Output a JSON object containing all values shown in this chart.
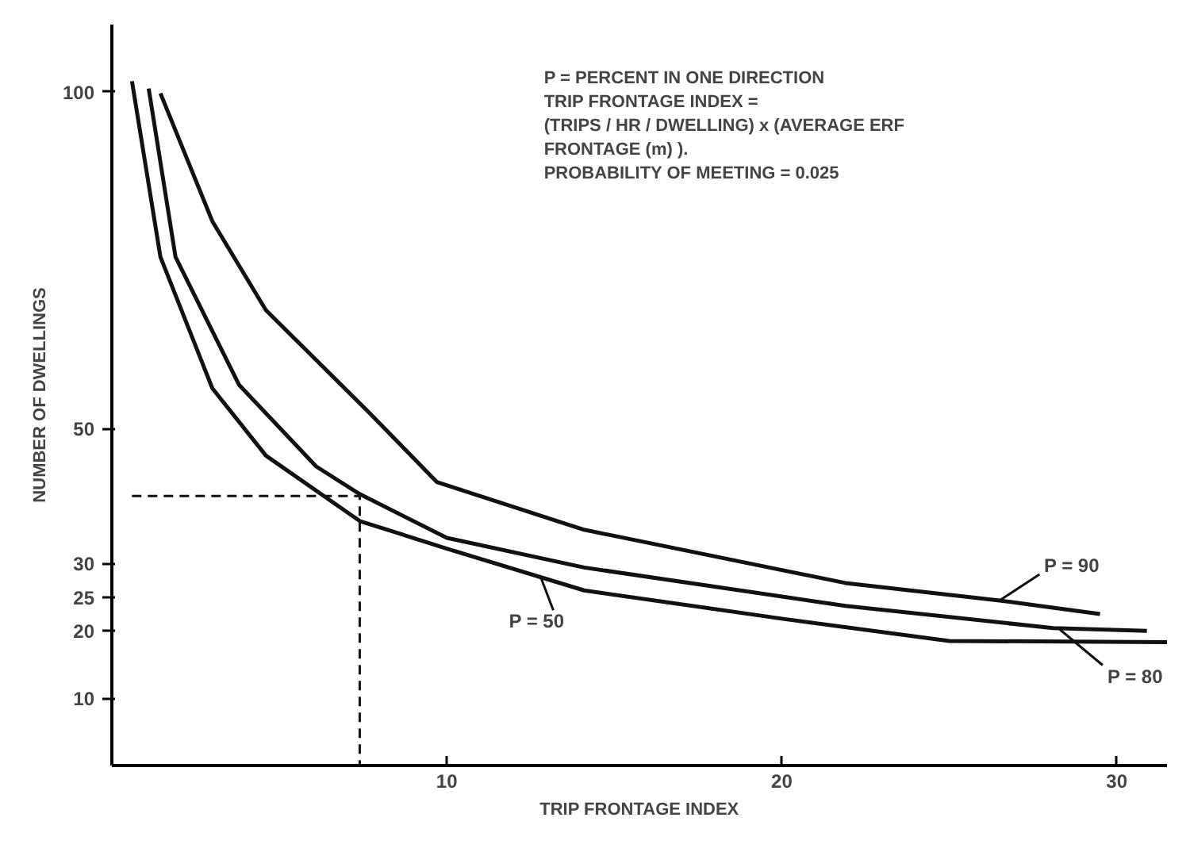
{
  "chart_data": {
    "type": "line",
    "xlabel": "TRIP FRONTAGE INDEX",
    "ylabel": "NUMBER OF DWELLINGS",
    "xlim": [
      0,
      31.5
    ],
    "ylim": [
      0,
      110
    ],
    "xticks": [
      10,
      20,
      30
    ],
    "yticks": [
      10,
      20,
      25,
      30,
      50,
      100
    ],
    "grid": false,
    "marker": "none",
    "line_style": "solid",
    "series": [
      {
        "color": "#111111",
        "x": [
          1.45,
          3.0,
          4.6,
          7.7,
          9.7,
          14.1,
          21.9,
          26.5,
          29.5
        ],
        "values": [
          99.8,
          80.8,
          67.6,
          52.3,
          42.1,
          35,
          27.1,
          24.5,
          22.5
        ]
      },
      {
        "color": "#111111",
        "x": [
          1.1,
          1.9,
          3.8,
          6.1,
          7.4,
          10,
          14.1,
          21.9,
          28.1,
          30.9
        ],
        "values": [
          100.5,
          75.5,
          56.5,
          44.4,
          40.3,
          33.8,
          29.4,
          23.7,
          20.4,
          20
        ]
      },
      {
        "color": "#111111",
        "x": [
          0.6,
          1.45,
          3.0,
          4.6,
          7.4,
          10,
          14.1,
          20,
          25,
          31.5
        ],
        "values": [
          101.6,
          75.5,
          56,
          46,
          36.3,
          32.2,
          26,
          21.8,
          18.5,
          18.3
        ]
      },
      {
        "color": "#111111",
        "line_style": "dashed",
        "x": [
          0.6,
          7.4,
          7.4
        ],
        "values": [
          40,
          40,
          0
        ]
      }
    ],
    "annotations": [
      "P = PERCENT IN ONE DIRECTION\nTRIP FRONTAGE INDEX =\n(TRIPS / HR / DWELLING) x (AVERAGE ERF\nFRONTAGE (m) ).\nPROBABILITY OF MEETING = 0.025",
      {
        "text": "P = 90",
        "x": 26.5,
        "y": 24.5
      },
      {
        "text": "P = 80",
        "x": 28.3,
        "y": 20.2
      },
      {
        "text": "P = 50",
        "x": 12.8,
        "y": 28
      }
    ]
  }
}
